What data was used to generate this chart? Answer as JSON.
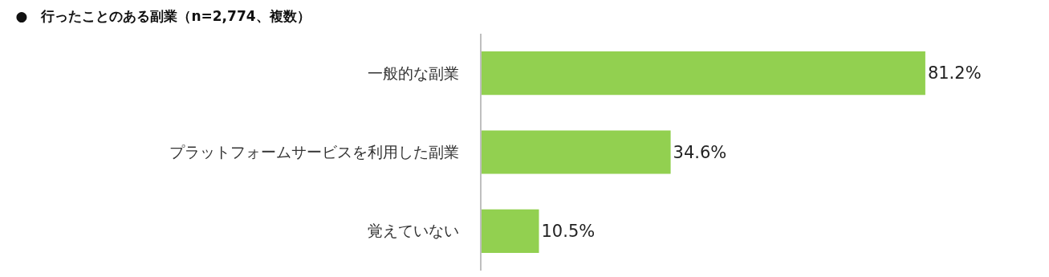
{
  "chart_data": {
    "type": "bar",
    "orientation": "horizontal",
    "title": "●　行ったことのある副業（n=2,774、複数）",
    "categories": [
      "一般的な副業",
      "プラットフォームサービスを利用した副業",
      "覚えていない"
    ],
    "values": [
      81.2,
      34.6,
      10.5
    ],
    "value_labels": [
      "81.2%",
      "34.6%",
      "10.5%"
    ],
    "color": "#92d050",
    "tick_labels": "y"
  }
}
